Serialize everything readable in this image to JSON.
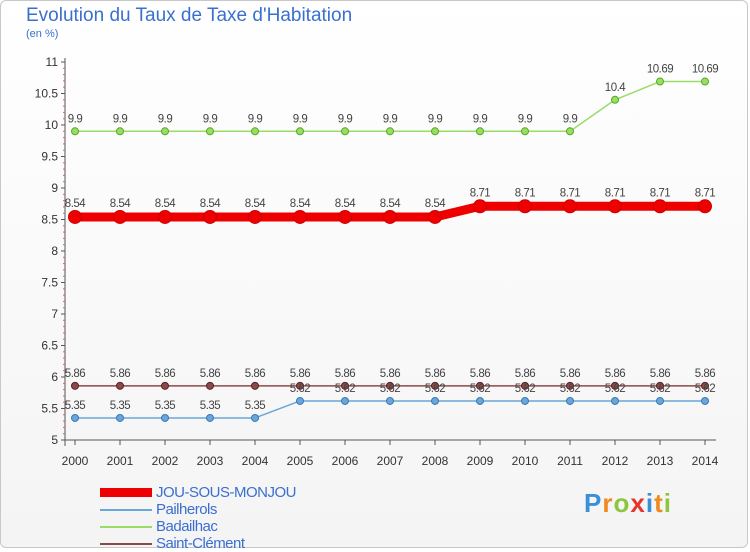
{
  "header": {
    "title": "Evolution du Taux de Taxe d'Habitation",
    "unit": "(en %)"
  },
  "brand": {
    "letters": [
      "P",
      "r",
      "o",
      "x",
      "i",
      "t",
      "i"
    ],
    "colors": [
      "#3a8fd8",
      "#f08a1e",
      "#8cc63f",
      "#e8342c",
      "#3a8fd8",
      "#f08a1e",
      "#8cc63f"
    ]
  },
  "chart_data": {
    "type": "line",
    "title": "Evolution du Taux de Taxe d'Habitation",
    "ylabel": "(en %)",
    "xlabel": "",
    "x": [
      "2000",
      "2001",
      "2002",
      "2003",
      "2004",
      "2005",
      "2006",
      "2007",
      "2008",
      "2009",
      "2010",
      "2011",
      "2012",
      "2013",
      "2014"
    ],
    "ylim": [
      5,
      11
    ],
    "yticks": [
      "5",
      "5.5",
      "6",
      "6.5",
      "7",
      "7.5",
      "8",
      "8.5",
      "9",
      "9.5",
      "10",
      "10.5",
      "11"
    ],
    "grid": false,
    "legend_position": "bottom-left",
    "series": [
      {
        "name": "JOU-SOUS-MONJOU",
        "color": "#ee0000",
        "values": [
          8.54,
          8.54,
          8.54,
          8.54,
          8.54,
          8.54,
          8.54,
          8.54,
          8.54,
          8.71,
          8.71,
          8.71,
          8.71,
          8.71,
          8.71
        ],
        "labels": [
          "8.54",
          "8.54",
          "8.54",
          "8.54",
          "8.54",
          "8.54",
          "8.54",
          "8.54",
          "8.54",
          "8.71",
          "8.71",
          "8.71",
          "8.71",
          "8.71",
          "8.71"
        ]
      },
      {
        "name": "Pailherols",
        "color": "#6aa6d8",
        "values": [
          5.35,
          5.35,
          5.35,
          5.35,
          5.35,
          5.62,
          5.62,
          5.62,
          5.62,
          5.62,
          5.62,
          5.62,
          5.62,
          5.62,
          5.62
        ],
        "labels": [
          "5.35",
          "5.35",
          "5.35",
          "5.35",
          "5.35",
          "5.62",
          "5.62",
          "5.62",
          "5.62",
          "5.62",
          "5.62",
          "5.62",
          "5.62",
          "5.62",
          "5.62"
        ]
      },
      {
        "name": "Badailhac",
        "color": "#99dd66",
        "values": [
          9.9,
          9.9,
          9.9,
          9.9,
          9.9,
          9.9,
          9.9,
          9.9,
          9.9,
          9.9,
          9.9,
          9.9,
          10.4,
          10.69,
          10.69
        ],
        "labels": [
          "9.9",
          "9.9",
          "9.9",
          "9.9",
          "9.9",
          "9.9",
          "9.9",
          "9.9",
          "9.9",
          "9.9",
          "9.9",
          "9.9",
          "10.4",
          "10.69",
          "10.69"
        ]
      },
      {
        "name": "Saint-Clément",
        "color": "#8b4a4a",
        "values": [
          5.86,
          5.86,
          5.86,
          5.86,
          5.86,
          5.86,
          5.86,
          5.86,
          5.86,
          5.86,
          5.86,
          5.86,
          5.86,
          5.86,
          5.86
        ],
        "labels": [
          "5.86",
          "5.86",
          "5.86",
          "5.86",
          "5.86",
          "5.86",
          "5.86",
          "5.86",
          "5.86",
          "5.86",
          "5.86",
          "5.86",
          "5.86",
          "5.86",
          "5.86"
        ]
      }
    ]
  }
}
